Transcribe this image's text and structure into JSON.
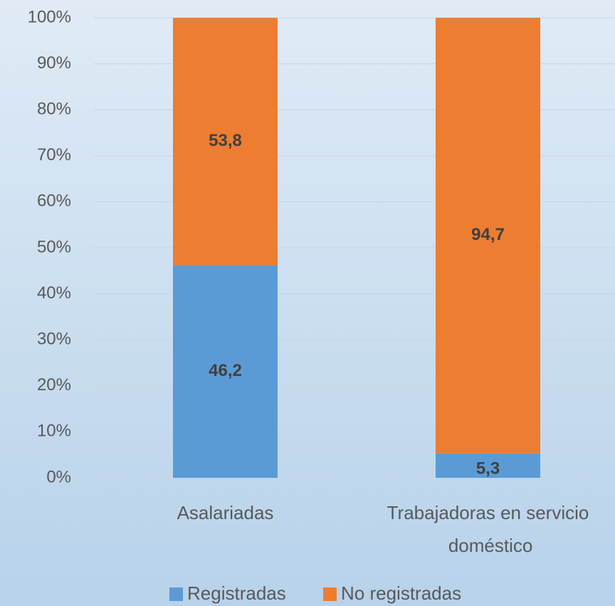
{
  "chart_data": {
    "type": "stacked_bar",
    "categories": [
      "Asalariadas",
      "Trabajadoras en servicio doméstico"
    ],
    "series": [
      {
        "name": "Registradas",
        "color": "#5b9bd5",
        "values": [
          46.2,
          5.3
        ],
        "value_labels": [
          "46,2",
          "5,3"
        ]
      },
      {
        "name": "No registradas",
        "color": "#ed7d31",
        "values": [
          53.8,
          94.7
        ],
        "value_labels": [
          "53,8",
          "94,7"
        ]
      }
    ],
    "ylim": [
      0,
      100
    ],
    "yticks": [
      {
        "value": 0,
        "label": "0%"
      },
      {
        "value": 10,
        "label": "10%"
      },
      {
        "value": 20,
        "label": "20%"
      },
      {
        "value": 30,
        "label": "30%"
      },
      {
        "value": 40,
        "label": "40%"
      },
      {
        "value": 50,
        "label": "50%"
      },
      {
        "value": 60,
        "label": "60%"
      },
      {
        "value": 70,
        "label": "70%"
      },
      {
        "value": 80,
        "label": "80%"
      },
      {
        "value": 90,
        "label": "90%"
      },
      {
        "value": 100,
        "label": "100%"
      }
    ],
    "grid": true,
    "legend": "bottom"
  }
}
